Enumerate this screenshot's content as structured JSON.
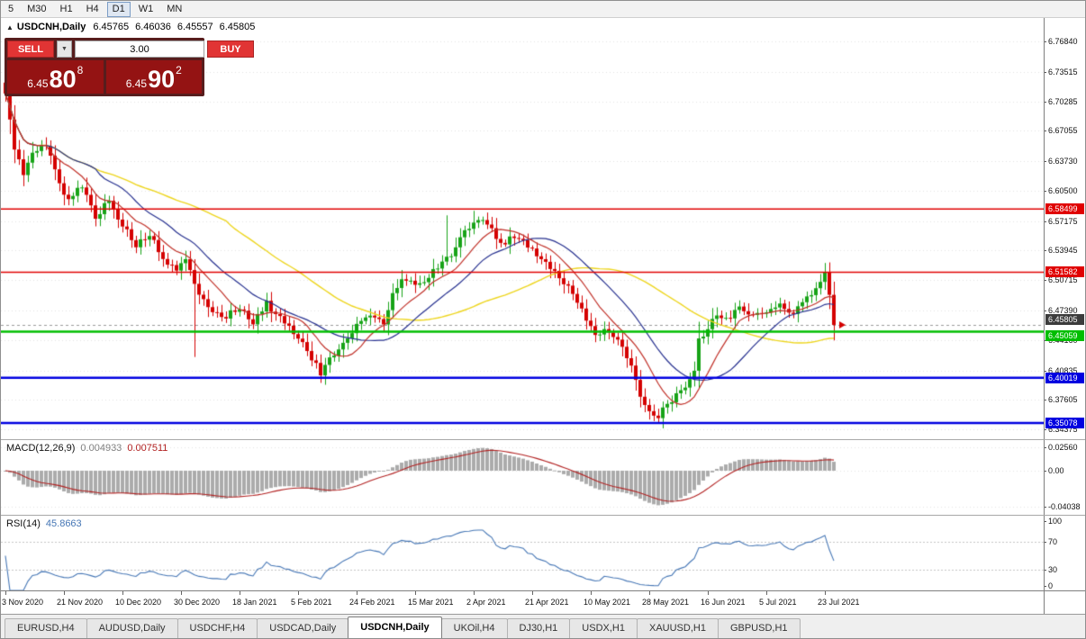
{
  "accent_colors": {
    "up": "#17A317",
    "down": "#D40000",
    "macd_hist": "#ABABAB",
    "macd_signal": "#B22222",
    "rsi_line": "#4576B5",
    "grid": "#E3E3E3",
    "bid_line": "#9A9A9A"
  },
  "toolbar": {
    "timeframes": [
      {
        "label": "5",
        "active": false
      },
      {
        "label": "M30",
        "active": false
      },
      {
        "label": "H1",
        "active": false
      },
      {
        "label": "H4",
        "active": false
      },
      {
        "label": "D1",
        "active": true
      },
      {
        "label": "W1",
        "active": false
      },
      {
        "label": "MN",
        "active": false
      }
    ]
  },
  "chart_header": {
    "collapse_icon": "▲",
    "symbol": "USDCNH,Daily",
    "open": "6.45765",
    "high": "6.46036",
    "low": "6.45557",
    "close": "6.45805"
  },
  "trade_widget": {
    "sell_label": "SELL",
    "buy_label": "BUY",
    "volume": "3.00",
    "spinner_icon": "▼",
    "sell_price": {
      "base": "6.45",
      "big": "80",
      "sup": "8"
    },
    "buy_price": {
      "base": "6.45",
      "big": "90",
      "sup": "2"
    }
  },
  "chart_data": {
    "type": "candlestick",
    "symbol": "USDCNH",
    "timeframe": "Daily",
    "price_axis": {
      "top": 6.794,
      "bottom": 6.333,
      "ticks": [
        "6.76840",
        "6.73515",
        "6.70285",
        "6.67055",
        "6.63730",
        "6.60500",
        "6.57175",
        "6.53945",
        "6.50715",
        "6.47390",
        "6.44160",
        "6.40835",
        "6.37605",
        "6.34375"
      ]
    },
    "hlines": [
      {
        "price": 6.58499,
        "label": "6.58499",
        "color": "#E00000",
        "width": 1.5
      },
      {
        "price": 6.51582,
        "label": "6.51582",
        "color": "#E00000",
        "width": 1.5
      },
      {
        "price": 6.45059,
        "label": "6.45059",
        "color": "#00BE00",
        "width": 2.5
      },
      {
        "price": 6.40019,
        "label": "6.40019",
        "color": "#0000E0",
        "width": 2.5
      },
      {
        "price": 6.35078,
        "label": "6.35078",
        "color": "#0000E0",
        "width": 2.5
      }
    ],
    "bid": {
      "price": 6.45805,
      "label": "6.45805",
      "bg": "#3C3C3C"
    },
    "num_candles": 185,
    "candle_step": 5,
    "seed": 5,
    "noise": 0.007,
    "anchors": [
      [
        0,
        6.71
      ],
      [
        2,
        6.652
      ],
      [
        4,
        6.625
      ],
      [
        6,
        6.645
      ],
      [
        9,
        6.656
      ],
      [
        12,
        6.612
      ],
      [
        14,
        6.596
      ],
      [
        17,
        6.61
      ],
      [
        20,
        6.576
      ],
      [
        23,
        6.596
      ],
      [
        26,
        6.566
      ],
      [
        29,
        6.546
      ],
      [
        32,
        6.556
      ],
      [
        35,
        6.531
      ],
      [
        38,
        6.516
      ],
      [
        40,
        6.53
      ],
      [
        42,
        6.502
      ],
      [
        45,
        6.477
      ],
      [
        48,
        6.466
      ],
      [
        52,
        6.476
      ],
      [
        55,
        6.461
      ],
      [
        58,
        6.481
      ],
      [
        61,
        6.466
      ],
      [
        65,
        6.446
      ],
      [
        68,
        6.421
      ],
      [
        70,
        6.406
      ],
      [
        73,
        6.426
      ],
      [
        76,
        6.441
      ],
      [
        78,
        6.456
      ],
      [
        81,
        6.471
      ],
      [
        84,
        6.461
      ],
      [
        86,
        6.491
      ],
      [
        88,
        6.511
      ],
      [
        91,
        6.501
      ],
      [
        94,
        6.511
      ],
      [
        97,
        6.526
      ],
      [
        100,
        6.541
      ],
      [
        102,
        6.561
      ],
      [
        104,
        6.571
      ],
      [
        106,
        6.576
      ],
      [
        108,
        6.561
      ],
      [
        110,
        6.546
      ],
      [
        113,
        6.556
      ],
      [
        117,
        6.541
      ],
      [
        120,
        6.526
      ],
      [
        123,
        6.511
      ],
      [
        126,
        6.491
      ],
      [
        129,
        6.466
      ],
      [
        131,
        6.446
      ],
      [
        133,
        6.456
      ],
      [
        136,
        6.441
      ],
      [
        139,
        6.411
      ],
      [
        141,
        6.381
      ],
      [
        143,
        6.366
      ],
      [
        145,
        6.358
      ],
      [
        147,
        6.372
      ],
      [
        150,
        6.386
      ],
      [
        152,
        6.396
      ],
      [
        153,
        6.406
      ],
      [
        154,
        6.44
      ],
      [
        156,
        6.455
      ],
      [
        158,
        6.47
      ],
      [
        160,
        6.464
      ],
      [
        163,
        6.478
      ],
      [
        166,
        6.468
      ],
      [
        169,
        6.471
      ],
      [
        172,
        6.481
      ],
      [
        175,
        6.471
      ],
      [
        177,
        6.486
      ],
      [
        179,
        6.491
      ],
      [
        181,
        6.506
      ],
      [
        182,
        6.5155
      ],
      [
        183,
        6.492
      ],
      [
        184,
        6.45805
      ]
    ],
    "spikes": [
      {
        "i": 0,
        "high": 6.731
      },
      {
        "i": 42,
        "low": 6.423
      },
      {
        "i": 70,
        "low": 6.401
      },
      {
        "i": 98,
        "high": 6.578
      },
      {
        "i": 104,
        "high": 6.583
      },
      {
        "i": 143,
        "low": 6.3545
      },
      {
        "i": 182,
        "high": 6.522
      },
      {
        "i": 184,
        "low": 6.4556
      }
    ],
    "moving_averages": [
      {
        "name": "SMA50",
        "period": 50,
        "color": "#EDD51E",
        "width": 1.4
      },
      {
        "name": "SMA21",
        "period": 21,
        "color": "#26308F",
        "width": 1.2
      },
      {
        "name": "SMA10",
        "period": 10,
        "color": "#C03028",
        "width": 1.2
      }
    ]
  },
  "macd": {
    "name": "MACD(12,26,9)",
    "value_main": "0.004933",
    "value_signal": "0.007511",
    "fast": 12,
    "slow": 26,
    "signal": 9,
    "axis": [
      {
        "v": 0.0256,
        "label": "0.02560"
      },
      {
        "v": 0,
        "label": "0.00"
      },
      {
        "v": -0.04038,
        "label": "-0.04038"
      }
    ]
  },
  "rsi": {
    "name": "RSI(14)",
    "value": "45.8663",
    "period": 14,
    "levels": [
      70,
      30
    ],
    "axis": [
      {
        "v": 100,
        "label": "100"
      },
      {
        "v": 70,
        "label": "70"
      },
      {
        "v": 30,
        "label": "30"
      },
      {
        "v": 0,
        "label": "0"
      }
    ]
  },
  "time_axis": [
    {
      "i": 0,
      "label": "3 Nov 2020"
    },
    {
      "i": 13,
      "label": "21 Nov 2020"
    },
    {
      "i": 26,
      "label": "10 Dec 2020"
    },
    {
      "i": 39,
      "label": "30 Dec 2020"
    },
    {
      "i": 52,
      "label": "18 Jan 2021"
    },
    {
      "i": 65,
      "label": "5 Feb 2021"
    },
    {
      "i": 78,
      "label": "24 Feb 2021"
    },
    {
      "i": 91,
      "label": "15 Mar 2021"
    },
    {
      "i": 104,
      "label": "2 Apr 2021"
    },
    {
      "i": 117,
      "label": "21 Apr 2021"
    },
    {
      "i": 130,
      "label": "10 May 2021"
    },
    {
      "i": 143,
      "label": "28 May 2021"
    },
    {
      "i": 156,
      "label": "16 Jun 2021"
    },
    {
      "i": 169,
      "label": "5 Jul 2021"
    },
    {
      "i": 182,
      "label": "23 Jul 2021"
    }
  ],
  "tabs": [
    {
      "label": "EURUSD,H4",
      "active": false
    },
    {
      "label": "AUDUSD,Daily",
      "active": false
    },
    {
      "label": "USDCHF,H4",
      "active": false
    },
    {
      "label": "USDCAD,Daily",
      "active": false
    },
    {
      "label": "USDCNH,Daily",
      "active": true
    },
    {
      "label": "UKOil,H4",
      "active": false
    },
    {
      "label": "DJ30,H1",
      "active": false
    },
    {
      "label": "USDX,H1",
      "active": false
    },
    {
      "label": "XAUUSD,H1",
      "active": false
    },
    {
      "label": "GBPUSD,H1",
      "active": false
    }
  ]
}
